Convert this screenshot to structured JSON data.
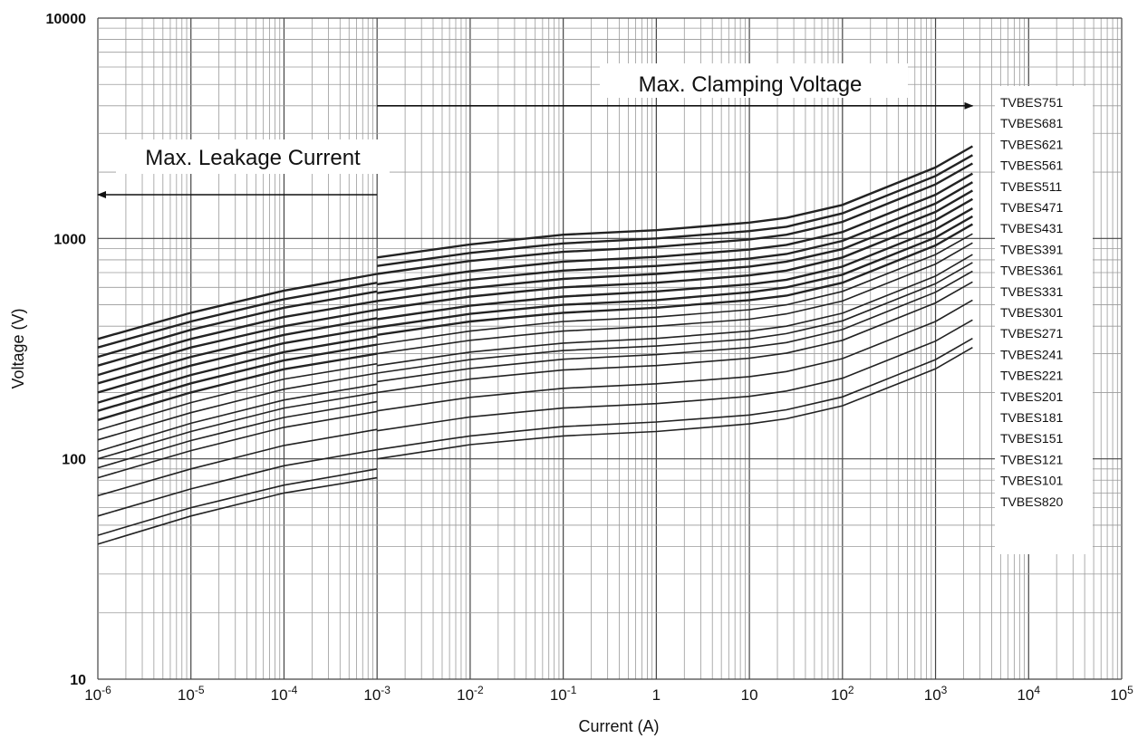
{
  "chart_data": {
    "type": "line",
    "x_scale": "log",
    "y_scale": "log",
    "xlim": [
      1e-06,
      100000
    ],
    "ylim": [
      10,
      10000
    ],
    "xlabel": "Current (A)",
    "ylabel": "Voltage (V)",
    "grid": true,
    "x_ticks": [
      {
        "value": 1e-06,
        "base": "10",
        "exp": "-6"
      },
      {
        "value": 1e-05,
        "base": "10",
        "exp": "-5"
      },
      {
        "value": 0.0001,
        "base": "10",
        "exp": "-4"
      },
      {
        "value": 0.001,
        "base": "10",
        "exp": "-3"
      },
      {
        "value": 0.01,
        "base": "10",
        "exp": "-2"
      },
      {
        "value": 0.1,
        "base": "10",
        "exp": "-1"
      },
      {
        "value": 1,
        "base": "1",
        "exp": ""
      },
      {
        "value": 10,
        "base": "10",
        "exp": ""
      },
      {
        "value": 100,
        "base": "10",
        "exp": "2"
      },
      {
        "value": 1000,
        "base": "10",
        "exp": "3"
      },
      {
        "value": 10000,
        "base": "10",
        "exp": "4"
      },
      {
        "value": 100000,
        "base": "10",
        "exp": "5"
      }
    ],
    "y_ticks": [
      {
        "value": 10,
        "label": "10"
      },
      {
        "value": 100,
        "label": "100"
      },
      {
        "value": 1000,
        "label": "1000"
      },
      {
        "value": 10000,
        "label": "10000"
      }
    ],
    "annotations": [
      {
        "text": "Max. Clamping Voltage",
        "arrow_from_x": 0.001,
        "arrow_to_x": 2500,
        "arrow_y": 4000
      },
      {
        "text": "Max. Leakage Current",
        "arrow_from_x": 0.001,
        "arrow_to_x": 1e-06,
        "arrow_y": 1580
      }
    ],
    "legend": {
      "placement": "right",
      "entries": [
        "TVBES751",
        "TVBES681",
        "TVBES621",
        "TVBES561",
        "TVBES511",
        "TVBES471",
        "TVBES431",
        "TVBES391",
        "TVBES361",
        "TVBES331",
        "TVBES301",
        "TVBES271",
        "TVBES241",
        "TVBES221",
        "TVBES201",
        "TVBES181",
        "TVBES151",
        "TVBES121",
        "TVBES101",
        "TVBES820"
      ]
    },
    "leakage_x": [
      1e-06,
      1e-05,
      0.0001,
      0.001
    ],
    "clamp_x": [
      0.001,
      0.01,
      0.1,
      1,
      10,
      25,
      100,
      1000,
      2500
    ],
    "series": [
      {
        "leakage": [
          350,
          460,
          580,
          690
        ],
        "clamp": [
          820,
          940,
          1040,
          1090,
          1180,
          1240,
          1420,
          2100,
          2620
        ]
      },
      {
        "leakage": [
          320,
          420,
          530,
          630
        ],
        "clamp": [
          750,
          860,
          950,
          1000,
          1080,
          1130,
          1300,
          1920,
          2390
        ]
      },
      {
        "leakage": [
          290,
          385,
          485,
          575
        ],
        "clamp": [
          690,
          790,
          870,
          915,
          990,
          1040,
          1190,
          1760,
          2190
        ]
      },
      {
        "leakage": [
          265,
          350,
          440,
          520
        ],
        "clamp": [
          620,
          710,
          785,
          825,
          890,
          935,
          1070,
          1580,
          1970
        ]
      },
      {
        "leakage": [
          240,
          320,
          400,
          475
        ],
        "clamp": [
          565,
          650,
          715,
          750,
          810,
          850,
          975,
          1440,
          1800
        ]
      },
      {
        "leakage": [
          220,
          290,
          365,
          435
        ],
        "clamp": [
          520,
          595,
          655,
          690,
          745,
          785,
          895,
          1320,
          1650
        ]
      },
      {
        "leakage": [
          200,
          265,
          335,
          395
        ],
        "clamp": [
          475,
          545,
          600,
          630,
          680,
          715,
          820,
          1210,
          1510
        ]
      },
      {
        "leakage": [
          180,
          240,
          305,
          360
        ],
        "clamp": [
          430,
          495,
          545,
          575,
          620,
          650,
          745,
          1100,
          1370
        ]
      },
      {
        "leakage": [
          165,
          220,
          280,
          330
        ],
        "clamp": [
          395,
          455,
          500,
          525,
          570,
          600,
          685,
          1010,
          1260
        ]
      },
      {
        "leakage": [
          150,
          200,
          255,
          300
        ],
        "clamp": [
          365,
          420,
          460,
          485,
          525,
          550,
          630,
          930,
          1160
        ]
      },
      {
        "leakage": [
          135,
          180,
          230,
          270
        ],
        "clamp": [
          330,
          380,
          420,
          440,
          475,
          500,
          575,
          845,
          1050
        ]
      },
      {
        "leakage": [
          122,
          162,
          207,
          245
        ],
        "clamp": [
          300,
          345,
          380,
          400,
          430,
          455,
          520,
          765,
          955
        ]
      },
      {
        "leakage": [
          108,
          145,
          185,
          218
        ],
        "clamp": [
          265,
          305,
          335,
          352,
          380,
          400,
          458,
          675,
          845
        ]
      },
      {
        "leakage": [
          100,
          133,
          170,
          200
        ],
        "clamp": [
          245,
          282,
          310,
          325,
          350,
          370,
          423,
          623,
          778
        ]
      },
      {
        "leakage": [
          91,
          121,
          154,
          182
        ],
        "clamp": [
          224,
          257,
          283,
          297,
          320,
          337,
          386,
          570,
          710
        ]
      },
      {
        "leakage": [
          82,
          109,
          139,
          164
        ],
        "clamp": [
          200,
          230,
          253,
          265,
          286,
          302,
          345,
          510,
          635
        ]
      },
      {
        "leakage": [
          68,
          90,
          115,
          136
        ],
        "clamp": [
          165,
          190,
          209,
          219,
          236,
          249,
          285,
          420,
          525
        ]
      },
      {
        "leakage": [
          55,
          73,
          93,
          110
        ],
        "clamp": [
          134,
          155,
          170,
          178,
          192,
          203,
          232,
          342,
          427
        ]
      },
      {
        "leakage": [
          45,
          60,
          76,
          90
        ],
        "clamp": [
          110,
          127,
          140,
          147,
          158,
          167,
          191,
          282,
          352
        ]
      },
      {
        "leakage": [
          41,
          55,
          70,
          82
        ],
        "clamp": [
          100,
          116,
          127,
          133,
          144,
          152,
          174,
          256,
          320
        ]
      }
    ]
  }
}
